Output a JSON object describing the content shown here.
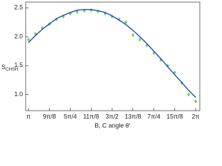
{
  "chart_data": {
    "type": "scatter",
    "x_label": "B, C angle θ′",
    "y_label": "S",
    "y_label_sub": "CHSH",
    "x": [
      3.1416,
      3.2725,
      3.4034,
      3.5343,
      3.6652,
      3.7961,
      3.927,
      4.0579,
      4.1888,
      4.3197,
      4.4506,
      4.5815,
      4.7124,
      4.8433,
      4.9742,
      5.1051,
      5.236,
      5.3669,
      5.4978,
      5.6287,
      5.7596,
      5.8905,
      6.0214,
      6.1523,
      6.2832
    ],
    "series": [
      {
        "kind": "points",
        "color": "#5fe01e",
        "values": [
          1.95,
          2.05,
          2.15,
          2.22,
          2.3,
          2.35,
          2.4,
          2.43,
          2.45,
          2.46,
          2.44,
          2.4,
          2.35,
          2.3,
          2.25,
          2.03,
          1.95,
          1.85,
          1.72,
          1.6,
          1.5,
          1.38,
          1.2,
          1.0,
          0.88
        ]
      },
      {
        "kind": "line",
        "color": "#1c3ed8",
        "values": [
          1.9,
          2.02,
          2.13,
          2.22,
          2.31,
          2.37,
          2.42,
          2.46,
          2.47,
          2.47,
          2.45,
          2.42,
          2.36,
          2.29,
          2.21,
          2.11,
          2.0,
          1.88,
          1.75,
          1.62,
          1.48,
          1.34,
          1.21,
          1.07,
          0.95
        ]
      }
    ],
    "xlim": [
      3.0895,
      6.3614
    ],
    "ylim": [
      0.72,
      2.6
    ],
    "xticks": [
      {
        "value": 3.1416,
        "label": "π"
      },
      {
        "value": 3.5343,
        "label": "9π/8"
      },
      {
        "value": 3.927,
        "label": "5π/4"
      },
      {
        "value": 4.3197,
        "label": "11π/8"
      },
      {
        "value": 4.7124,
        "label": "3π/2"
      },
      {
        "value": 5.1051,
        "label": "13π/8"
      },
      {
        "value": 5.4978,
        "label": "7π/4"
      },
      {
        "value": 5.8905,
        "label": "15π/8"
      },
      {
        "value": 6.2832,
        "label": "2π"
      }
    ],
    "yticks": [
      {
        "value": 1,
        "label": "1.0"
      },
      1.5,
      {
        "value": 2,
        "label": "2.0"
      },
      2.5
    ]
  }
}
